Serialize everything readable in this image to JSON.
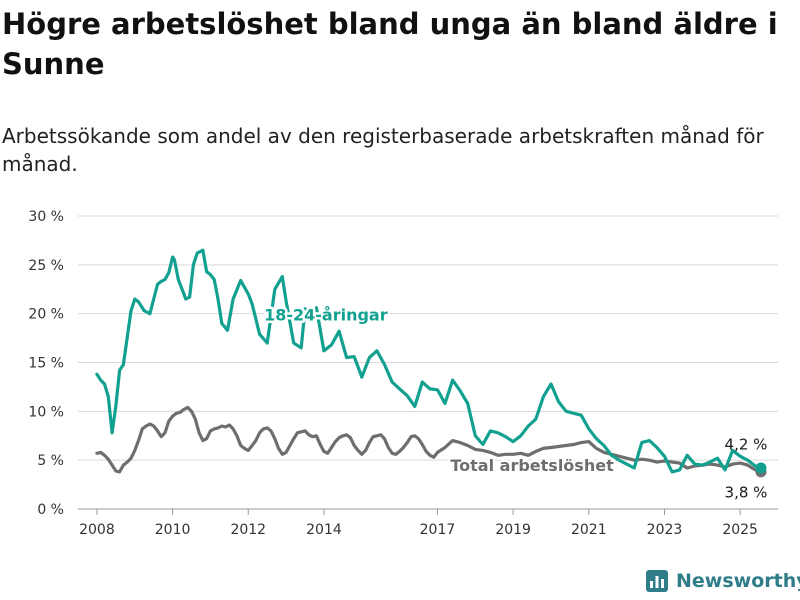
{
  "header": {
    "title": "Högre arbetslöshet bland unga än bland äldre i Sunne",
    "subtitle": "Arbetssökande som andel av den registerbaserade arbetskraften månad för månad."
  },
  "branding": {
    "name": "Newsworthy",
    "icon": "bar-chart-logo-icon",
    "color": "#2f7d88"
  },
  "chart_data": {
    "type": "line",
    "title": "",
    "xlabel": "",
    "ylabel": "",
    "ylim": [
      0,
      30
    ],
    "xlim": [
      2007.5,
      2026.0
    ],
    "y_ticks": [
      0,
      5,
      10,
      15,
      20,
      25,
      30
    ],
    "y_tick_labels": [
      "0 %",
      "5 %",
      "10 %",
      "15 %",
      "20 %",
      "25 %",
      "30 %"
    ],
    "x_ticks": [
      2008,
      2010,
      2012,
      2014,
      2017,
      2019,
      2021,
      2023,
      2025
    ],
    "x_tick_labels": [
      "2008",
      "2010",
      "2012",
      "2014",
      "2017",
      "2019",
      "2021",
      "2023",
      "2025"
    ],
    "grid": "horizontal",
    "legend": "inline labels",
    "series": [
      {
        "name": "18-24-åringar",
        "color": "#12a190",
        "label_text": "18-24-åringar",
        "end_label": "4,2 %",
        "x": [
          2008.0,
          2008.1,
          2008.2,
          2008.3,
          2008.4,
          2008.5,
          2008.6,
          2008.7,
          2008.9,
          2009.0,
          2009.1,
          2009.25,
          2009.4,
          2009.5,
          2009.6,
          2009.7,
          2009.8,
          2009.9,
          2010.0,
          2010.05,
          2010.15,
          2010.25,
          2010.35,
          2010.45,
          2010.55,
          2010.65,
          2010.8,
          2010.9,
          2011.0,
          2011.1,
          2011.2,
          2011.3,
          2011.45,
          2011.6,
          2011.8,
          2012.0,
          2012.1,
          2012.3,
          2012.5,
          2012.7,
          2012.9,
          2013.0,
          2013.2,
          2013.4,
          2013.5,
          2013.6,
          2013.8,
          2014.0,
          2014.2,
          2014.4,
          2014.6,
          2014.8,
          2015.0,
          2015.2,
          2015.4,
          2015.6,
          2015.8,
          2016.0,
          2016.2,
          2016.4,
          2016.6,
          2016.8,
          2017.0,
          2017.2,
          2017.4,
          2017.6,
          2017.8,
          2018.0,
          2018.2,
          2018.4,
          2018.6,
          2018.8,
          2019.0,
          2019.2,
          2019.4,
          2019.6,
          2019.8,
          2020.0,
          2020.2,
          2020.4,
          2020.6,
          2020.8,
          2021.0,
          2021.2,
          2021.4,
          2021.6,
          2021.8,
          2022.0,
          2022.2,
          2022.4,
          2022.6,
          2022.8,
          2023.0,
          2023.2,
          2023.4,
          2023.6,
          2023.8,
          2024.0,
          2024.2,
          2024.4,
          2024.6,
          2024.8,
          2025.0,
          2025.2,
          2025.4,
          2025.55
        ],
        "values": [
          13.8,
          13.2,
          12.8,
          11.5,
          7.8,
          10.5,
          14.2,
          14.8,
          20.3,
          21.5,
          21.2,
          20.3,
          20.0,
          21.5,
          23.0,
          23.3,
          23.5,
          24.2,
          25.8,
          25.5,
          23.5,
          22.5,
          21.5,
          21.7,
          25.0,
          26.2,
          26.5,
          24.3,
          24.0,
          23.5,
          21.5,
          19.0,
          18.3,
          21.5,
          23.4,
          22.0,
          21.0,
          17.9,
          17.0,
          22.5,
          23.8,
          21.3,
          17.0,
          16.5,
          20.5,
          20.0,
          20.6,
          16.2,
          16.8,
          18.2,
          15.5,
          15.6,
          13.5,
          15.5,
          16.2,
          14.8,
          13.0,
          12.3,
          11.6,
          10.5,
          13.0,
          12.3,
          12.2,
          10.8,
          13.2,
          12.1,
          10.8,
          7.5,
          6.6,
          8.0,
          7.8,
          7.4,
          6.9,
          7.5,
          8.5,
          9.2,
          11.5,
          12.8,
          11.0,
          10.0,
          9.8,
          9.6,
          8.2,
          7.2,
          6.5,
          5.5,
          5.0,
          4.6,
          4.2,
          6.8,
          7.0,
          6.3,
          5.4,
          3.8,
          4.0,
          5.5,
          4.6,
          4.5,
          4.8,
          5.2,
          4.0,
          6.0,
          5.4,
          5.0,
          4.4,
          4.2
        ]
      },
      {
        "name": "Total arbetslöshet",
        "color": "#6e6e6e",
        "label_text": "Total arbetslöshet",
        "end_label": "3,8 %",
        "x": [
          2008.0,
          2008.1,
          2008.2,
          2008.3,
          2008.4,
          2008.5,
          2008.6,
          2008.7,
          2008.8,
          2008.9,
          2009.0,
          2009.1,
          2009.2,
          2009.3,
          2009.4,
          2009.5,
          2009.6,
          2009.7,
          2009.8,
          2009.9,
          2010.0,
          2010.1,
          2010.2,
          2010.3,
          2010.4,
          2010.5,
          2010.6,
          2010.7,
          2010.8,
          2010.9,
          2011.0,
          2011.1,
          2011.2,
          2011.3,
          2011.4,
          2011.5,
          2011.6,
          2011.7,
          2011.8,
          2011.9,
          2012.0,
          2012.1,
          2012.2,
          2012.3,
          2012.4,
          2012.5,
          2012.6,
          2012.7,
          2012.8,
          2012.9,
          2013.0,
          2013.1,
          2013.2,
          2013.3,
          2013.4,
          2013.5,
          2013.6,
          2013.7,
          2013.8,
          2013.9,
          2014.0,
          2014.1,
          2014.2,
          2014.3,
          2014.4,
          2014.5,
          2014.6,
          2014.7,
          2014.8,
          2014.9,
          2015.0,
          2015.1,
          2015.2,
          2015.3,
          2015.4,
          2015.5,
          2015.6,
          2015.7,
          2015.8,
          2015.9,
          2016.0,
          2016.1,
          2016.2,
          2016.3,
          2016.4,
          2016.5,
          2016.6,
          2016.7,
          2016.8,
          2016.9,
          2017.0,
          2017.2,
          2017.4,
          2017.6,
          2017.8,
          2018.0,
          2018.2,
          2018.4,
          2018.6,
          2018.8,
          2019.0,
          2019.2,
          2019.4,
          2019.6,
          2019.8,
          2020.0,
          2020.2,
          2020.4,
          2020.6,
          2020.8,
          2021.0,
          2021.2,
          2021.4,
          2021.6,
          2021.8,
          2022.0,
          2022.2,
          2022.4,
          2022.6,
          2022.8,
          2023.0,
          2023.2,
          2023.4,
          2023.6,
          2023.8,
          2024.0,
          2024.2,
          2024.4,
          2024.6,
          2024.8,
          2025.0,
          2025.2,
          2025.4,
          2025.55
        ],
        "values": [
          5.7,
          5.8,
          5.5,
          5.1,
          4.5,
          3.9,
          3.8,
          4.5,
          4.8,
          5.2,
          6.0,
          7.0,
          8.2,
          8.5,
          8.7,
          8.5,
          8.0,
          7.4,
          7.8,
          9.0,
          9.5,
          9.8,
          9.9,
          10.2,
          10.4,
          10.0,
          9.2,
          7.8,
          7.0,
          7.2,
          8.0,
          8.2,
          8.3,
          8.5,
          8.4,
          8.6,
          8.2,
          7.5,
          6.5,
          6.2,
          6.0,
          6.5,
          7.0,
          7.8,
          8.2,
          8.3,
          8.0,
          7.2,
          6.2,
          5.6,
          5.8,
          6.5,
          7.2,
          7.8,
          7.9,
          8.0,
          7.6,
          7.4,
          7.5,
          6.6,
          5.9,
          5.7,
          6.3,
          6.9,
          7.3,
          7.5,
          7.6,
          7.3,
          6.5,
          6.0,
          5.6,
          6.0,
          6.8,
          7.4,
          7.5,
          7.6,
          7.2,
          6.3,
          5.7,
          5.6,
          5.9,
          6.3,
          6.8,
          7.4,
          7.5,
          7.2,
          6.6,
          5.9,
          5.5,
          5.3,
          5.8,
          6.3,
          7.0,
          6.8,
          6.5,
          6.1,
          6.0,
          5.8,
          5.5,
          5.6,
          5.6,
          5.7,
          5.5,
          5.9,
          6.2,
          6.3,
          6.4,
          6.5,
          6.6,
          6.8,
          6.9,
          6.2,
          5.8,
          5.6,
          5.4,
          5.2,
          5.0,
          5.1,
          5.0,
          4.8,
          4.9,
          4.8,
          4.7,
          4.2,
          4.4,
          4.5,
          4.6,
          4.5,
          4.3,
          4.6,
          4.7,
          4.5,
          4.0,
          3.8
        ]
      }
    ]
  }
}
